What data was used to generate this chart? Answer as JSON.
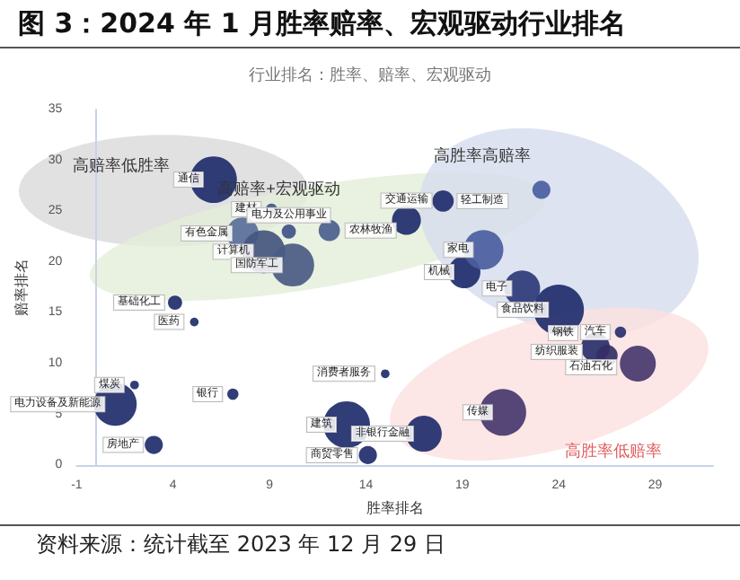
{
  "chart_data": {
    "type": "bubble",
    "title": "图 3：2024 年 1 月胜率赔率、宏观驱动行业排名",
    "subtitle": "行业排名：胜率、赔率、宏观驱动",
    "xlabel": "胜率排名",
    "ylabel": "赔率排名",
    "xlim": [
      -1,
      32
    ],
    "xticks": [
      -1,
      4,
      9,
      14,
      19,
      24,
      29
    ],
    "ylim": [
      0,
      35
    ],
    "yticks": [
      0,
      5,
      10,
      15,
      20,
      25,
      30,
      35
    ],
    "grid": false,
    "series": [
      {
        "x": [
          6.1,
          9.1,
          7.6,
          10.0,
          8.7,
          10.2,
          12.1,
          4.1,
          5.1,
          2.0,
          1.0,
          3.0,
          7.1,
          15.0,
          13.0,
          17.0,
          14.1,
          21.1,
          27.2,
          25.9,
          26.5,
          28.1,
          24.0,
          22.1,
          19.1,
          20.1,
          16.1,
          18.0,
          23.1
        ],
        "values": [
          28.1,
          25.2,
          22.8,
          23.0,
          21.0,
          19.7,
          23.1,
          16.0,
          14.1,
          7.9,
          6.0,
          2.0,
          7.0,
          9.0,
          4.0,
          3.1,
          1.0,
          5.2,
          13.1,
          11.6,
          10.8,
          10.0,
          15.3,
          17.4,
          19.0,
          21.2,
          24.1,
          26.0,
          27.1
        ],
        "sizes": [
          0.86,
          0.05,
          0.41,
          0.08,
          0.73,
          0.73,
          0.18,
          0.08,
          0.03,
          0.03,
          0.73,
          0.13,
          0.05,
          0.03,
          0.86,
          0.51,
          0.13,
          0.86,
          0.05,
          0.33,
          0.18,
          0.51,
          1,
          0.51,
          0.41,
          0.62,
          0.33,
          0.18,
          0.13
        ],
        "colors": [
          "#1f2d6b",
          "#3f5289",
          "#5a6e9a",
          "#3f5289",
          "#44567f",
          "#4a5b84",
          "#4a5f8e",
          "#1f2d6b",
          "#1f2d6b",
          "#1f2d6b",
          "#1f2d6b",
          "#1f2d6b",
          "#1f2d6b",
          "#1f2d6b",
          "#1f2d6b",
          "#1f2d6b",
          "#1f2d6b",
          "#46386e",
          "#2a2f6e",
          "#2a2f6e",
          "#342f66",
          "#46386e",
          "#1f2d6b",
          "#2d3a78",
          "#1f2d6b",
          "#4a5ea0",
          "#1f2d6b",
          "#1f2d6b",
          "#4a5ea0"
        ]
      }
    ],
    "annotations": [
      {
        "text": "通信",
        "x": 6.1,
        "y": 28.1
      },
      {
        "text": "建材",
        "x": 9.1,
        "y": 25.2
      },
      {
        "text": "有色金属",
        "x": 7.6,
        "y": 22.8
      },
      {
        "text": "电力及公用事业",
        "x": 10.0,
        "y": 23.0
      },
      {
        "text": "计算机",
        "x": 8.7,
        "y": 21.0
      },
      {
        "text": "国防军工",
        "x": 10.2,
        "y": 19.7
      },
      {
        "text": "农林牧渔",
        "x": 12.1,
        "y": 23.1
      },
      {
        "text": "基础化工",
        "x": 4.1,
        "y": 16.0
      },
      {
        "text": "医药",
        "x": 5.1,
        "y": 14.1
      },
      {
        "text": "煤炭",
        "x": 2.0,
        "y": 7.9
      },
      {
        "text": "电力设备及新能源",
        "x": 1.0,
        "y": 6.0
      },
      {
        "text": "房地产",
        "x": 3.0,
        "y": 2.0
      },
      {
        "text": "银行",
        "x": 7.1,
        "y": 7.0
      },
      {
        "text": "消费者服务",
        "x": 15.0,
        "y": 9.0
      },
      {
        "text": "建筑",
        "x": 13.0,
        "y": 4.0
      },
      {
        "text": "非银行金融",
        "x": 17.0,
        "y": 3.1
      },
      {
        "text": "商贸零售",
        "x": 14.1,
        "y": 1.0
      },
      {
        "text": "传媒",
        "x": 21.1,
        "y": 5.2
      },
      {
        "text": "汽车",
        "x": 27.2,
        "y": 13.1
      },
      {
        "text": "钢铁",
        "x": 25.9,
        "y": 11.6
      },
      {
        "text": "纺织服装",
        "x": 26.5,
        "y": 10.8
      },
      {
        "text": "石油石化",
        "x": 28.1,
        "y": 10.0
      },
      {
        "text": "食品饮料",
        "x": 24.0,
        "y": 15.3
      },
      {
        "text": "电子",
        "x": 22.1,
        "y": 17.4
      },
      {
        "text": "机械",
        "x": 19.1,
        "y": 19.0
      },
      {
        "text": "家电",
        "x": 20.1,
        "y": 21.2
      },
      {
        "text": "交通运输",
        "x": 16.1,
        "y": 24.1
      },
      {
        "text": "轻工制造",
        "x": 18.0,
        "y": 26.0
      },
      "高赔率低胜率",
      "高赔率+宏观驱动",
      "高胜率高赔率",
      "高胜率低赔率",
      "资料来源：统计截至 2023 年 12 月 29 日"
    ]
  }
}
